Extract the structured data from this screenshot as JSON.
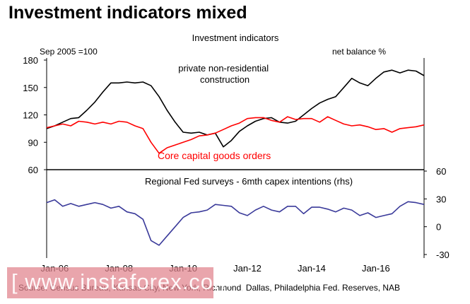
{
  "slide_title": "Investment indicators mixed",
  "source_note": "Source: Census Bureau, Kansas City, New York, Richmond, Dallas, Philadelphia Fed. Reserves, NAB",
  "watermark": "[ www.instaforex.com ]",
  "chart_data": {
    "type": "line",
    "title": "Investment indicators",
    "x_tick_labels": [
      "Jan-06",
      "Jan-08",
      "Jan-10",
      "Jan-12",
      "Jan-14",
      "Jan-16"
    ],
    "x_tick_values": [
      2006,
      2008,
      2010,
      2012,
      2014,
      2016
    ],
    "xlim": [
      2005.75,
      2017.5
    ],
    "grid": false,
    "top_panel": {
      "y_axis_label": "Sep 2005 =100",
      "ylim": [
        60,
        180
      ],
      "y_ticks": [
        60,
        90,
        120,
        150,
        180
      ],
      "series": [
        {
          "name": "private non-residential construction",
          "color": "#000000",
          "points": [
            [
              2005.75,
              105
            ],
            [
              2006,
              108
            ],
            [
              2006.25,
              112
            ],
            [
              2006.5,
              116
            ],
            [
              2006.75,
              117
            ],
            [
              2007,
              125
            ],
            [
              2007.25,
              134
            ],
            [
              2007.5,
              145
            ],
            [
              2007.75,
              155
            ],
            [
              2008,
              155
            ],
            [
              2008.25,
              156
            ],
            [
              2008.5,
              155
            ],
            [
              2008.75,
              156
            ],
            [
              2009,
              152
            ],
            [
              2009.25,
              140
            ],
            [
              2009.5,
              125
            ],
            [
              2009.75,
              112
            ],
            [
              2010,
              101
            ],
            [
              2010.25,
              100
            ],
            [
              2010.5,
              101
            ],
            [
              2010.75,
              98
            ],
            [
              2011,
              100
            ],
            [
              2011.25,
              85
            ],
            [
              2011.5,
              92
            ],
            [
              2011.75,
              102
            ],
            [
              2012,
              108
            ],
            [
              2012.25,
              113
            ],
            [
              2012.5,
              116
            ],
            [
              2012.75,
              117
            ],
            [
              2013,
              112
            ],
            [
              2013.25,
              111
            ],
            [
              2013.5,
              113
            ],
            [
              2013.75,
              120
            ],
            [
              2014,
              127
            ],
            [
              2014.25,
              133
            ],
            [
              2014.5,
              137
            ],
            [
              2014.75,
              140
            ],
            [
              2015,
              150
            ],
            [
              2015.25,
              160
            ],
            [
              2015.5,
              155
            ],
            [
              2015.75,
              152
            ],
            [
              2016,
              160
            ],
            [
              2016.25,
              167
            ],
            [
              2016.5,
              169
            ],
            [
              2016.75,
              166
            ],
            [
              2017,
              169
            ],
            [
              2017.25,
              168
            ],
            [
              2017.5,
              163
            ]
          ]
        },
        {
          "name": "Core capital goods orders",
          "color": "#ff0000",
          "points": [
            [
              2005.75,
              106
            ],
            [
              2006,
              108
            ],
            [
              2006.25,
              110
            ],
            [
              2006.5,
              108
            ],
            [
              2006.75,
              113
            ],
            [
              2007,
              112
            ],
            [
              2007.25,
              110
            ],
            [
              2007.5,
              112
            ],
            [
              2007.75,
              110
            ],
            [
              2008,
              113
            ],
            [
              2008.25,
              112
            ],
            [
              2008.5,
              108
            ],
            [
              2008.75,
              105
            ],
            [
              2009,
              90
            ],
            [
              2009.25,
              78
            ],
            [
              2009.5,
              84
            ],
            [
              2009.75,
              87
            ],
            [
              2010,
              90
            ],
            [
              2010.25,
              93
            ],
            [
              2010.5,
              97
            ],
            [
              2010.75,
              98
            ],
            [
              2011,
              100
            ],
            [
              2011.25,
              104
            ],
            [
              2011.5,
              108
            ],
            [
              2011.75,
              111
            ],
            [
              2012,
              116
            ],
            [
              2012.25,
              117
            ],
            [
              2012.5,
              117
            ],
            [
              2012.75,
              114
            ],
            [
              2013,
              112
            ],
            [
              2013.25,
              118
            ],
            [
              2013.5,
              115
            ],
            [
              2013.75,
              116
            ],
            [
              2014,
              116
            ],
            [
              2014.25,
              112
            ],
            [
              2014.5,
              118
            ],
            [
              2014.75,
              114
            ],
            [
              2015,
              110
            ],
            [
              2015.25,
              108
            ],
            [
              2015.5,
              109
            ],
            [
              2015.75,
              107
            ],
            [
              2016,
              104
            ],
            [
              2016.25,
              105
            ],
            [
              2016.5,
              101
            ],
            [
              2016.75,
              105
            ],
            [
              2017,
              106
            ],
            [
              2017.25,
              107
            ],
            [
              2017.5,
              109
            ]
          ]
        }
      ]
    },
    "bottom_panel": {
      "title": "Regional Fed surveys - 6mth capex intentions (rhs)",
      "y_axis_label": "net balance %",
      "ylim": [
        -30,
        60
      ],
      "y_ticks": [
        -30,
        0,
        30,
        60
      ],
      "series": [
        {
          "name": "Regional Fed surveys - 6mth capex intentions",
          "color": "#3a3a9a",
          "points": [
            [
              2005.75,
              26
            ],
            [
              2006,
              29
            ],
            [
              2006.25,
              22
            ],
            [
              2006.5,
              25
            ],
            [
              2006.75,
              22
            ],
            [
              2007,
              24
            ],
            [
              2007.25,
              26
            ],
            [
              2007.5,
              24
            ],
            [
              2007.75,
              20
            ],
            [
              2008,
              22
            ],
            [
              2008.25,
              16
            ],
            [
              2008.5,
              14
            ],
            [
              2008.75,
              8
            ],
            [
              2009,
              -15
            ],
            [
              2009.25,
              -20
            ],
            [
              2009.5,
              -10
            ],
            [
              2009.75,
              0
            ],
            [
              2010,
              10
            ],
            [
              2010.25,
              15
            ],
            [
              2010.5,
              16
            ],
            [
              2010.75,
              18
            ],
            [
              2011,
              24
            ],
            [
              2011.25,
              23
            ],
            [
              2011.5,
              22
            ],
            [
              2011.75,
              15
            ],
            [
              2012,
              12
            ],
            [
              2012.25,
              18
            ],
            [
              2012.5,
              22
            ],
            [
              2012.75,
              18
            ],
            [
              2013,
              16
            ],
            [
              2013.25,
              22
            ],
            [
              2013.5,
              22
            ],
            [
              2013.75,
              14
            ],
            [
              2014,
              21
            ],
            [
              2014.25,
              21
            ],
            [
              2014.5,
              19
            ],
            [
              2014.75,
              16
            ],
            [
              2015,
              20
            ],
            [
              2015.25,
              18
            ],
            [
              2015.5,
              12
            ],
            [
              2015.75,
              15
            ],
            [
              2016,
              10
            ],
            [
              2016.25,
              12
            ],
            [
              2016.5,
              14
            ],
            [
              2016.75,
              22
            ],
            [
              2017,
              27
            ],
            [
              2017.25,
              26
            ],
            [
              2017.5,
              24
            ]
          ]
        }
      ]
    }
  }
}
